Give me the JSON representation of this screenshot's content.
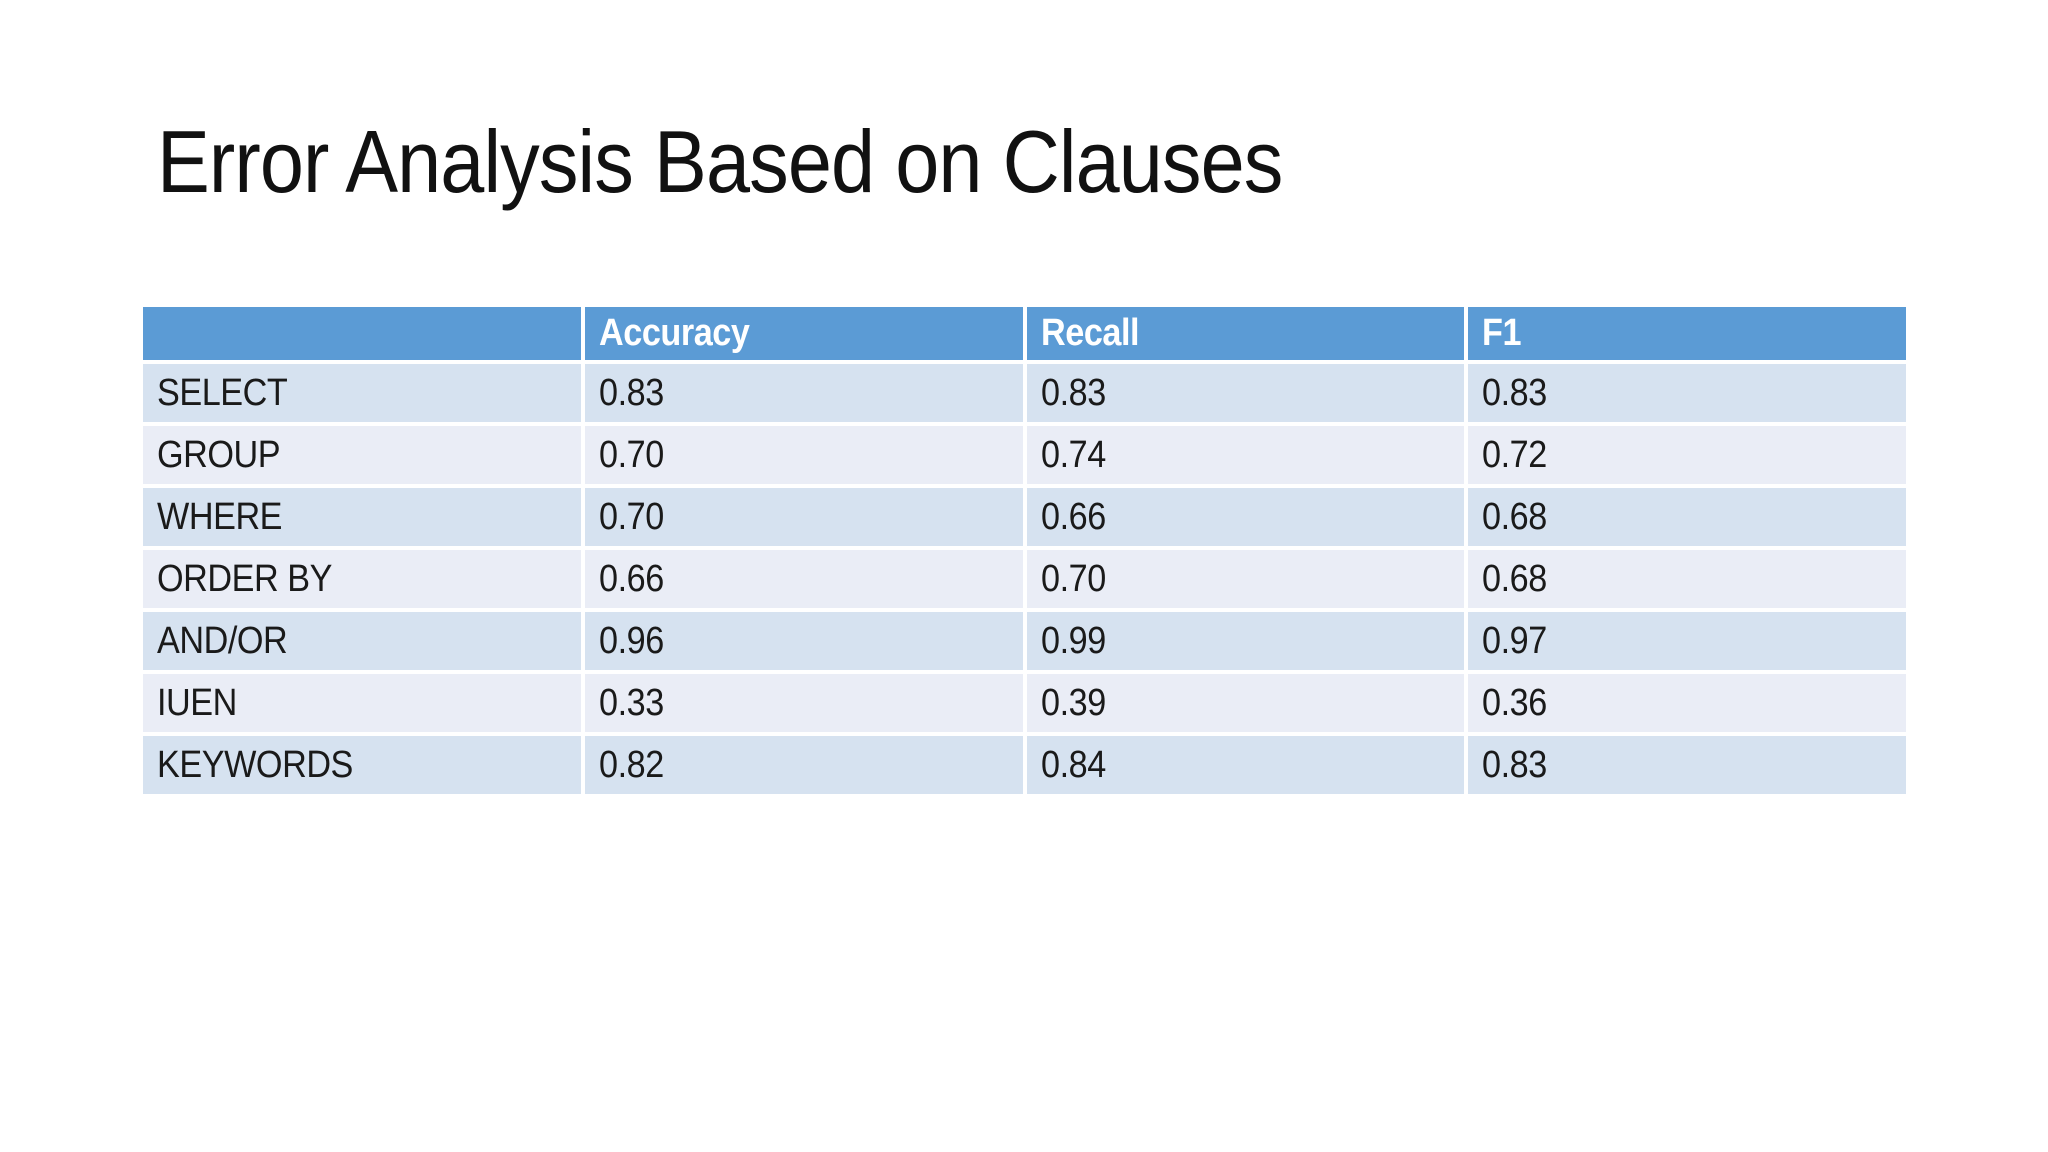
{
  "slide": {
    "title": "Error Analysis Based on Clauses"
  },
  "table": {
    "columns": [
      "",
      "Accuracy",
      "Recall",
      "F1"
    ],
    "rows": [
      [
        "SELECT",
        "0.83",
        "0.83",
        "0.83"
      ],
      [
        "GROUP",
        "0.70",
        "0.74",
        "0.72"
      ],
      [
        "WHERE",
        "0.70",
        "0.66",
        "0.68"
      ],
      [
        "ORDER BY",
        "0.66",
        "0.70",
        "0.68"
      ],
      [
        "AND/OR",
        "0.96",
        "0.99",
        "0.97"
      ],
      [
        "IUEN",
        "0.33",
        "0.39",
        "0.36"
      ],
      [
        "KEYWORDS",
        "0.82",
        "0.84",
        "0.83"
      ]
    ]
  },
  "colors": {
    "header_fill": "#5B9BD5",
    "band_dark": "#D6E2F0",
    "band_light": "#EAEDF6",
    "header_text": "#FFFFFF",
    "body_text": "#1A1A1A",
    "title_text": "#111111",
    "background": "#FFFFFF"
  }
}
